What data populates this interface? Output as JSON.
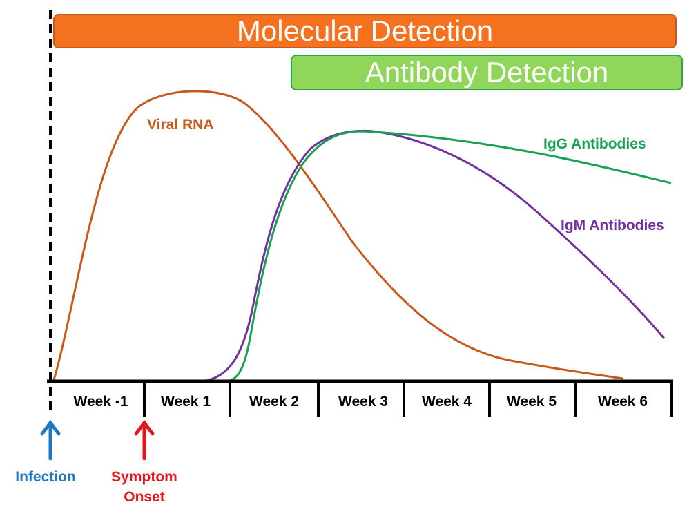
{
  "banners": {
    "molecular": "Molecular Detection",
    "antibody": "Antibody Detection"
  },
  "curve_labels": {
    "viral_rna": "Viral RNA",
    "igg": "IgG Antibodies",
    "igm": "IgM Antibodies"
  },
  "timeline": {
    "weeks": [
      "Week -1",
      "Week 1",
      "Week 2",
      "Week 3",
      "Week 4",
      "Week 5",
      "Week 6"
    ]
  },
  "markers": {
    "infection": "Infection",
    "symptom_onset_line1": "Symptom",
    "symptom_onset_line2": "Onset"
  },
  "colors": {
    "molecular_banner": "#f4711f",
    "antibody_banner": "#8fd65a",
    "viral_rna": "#c8581a",
    "igg": "#1aa052",
    "igm": "#7030a0",
    "infection": "#1f77c4",
    "symptom_onset": "#e8141c"
  }
}
